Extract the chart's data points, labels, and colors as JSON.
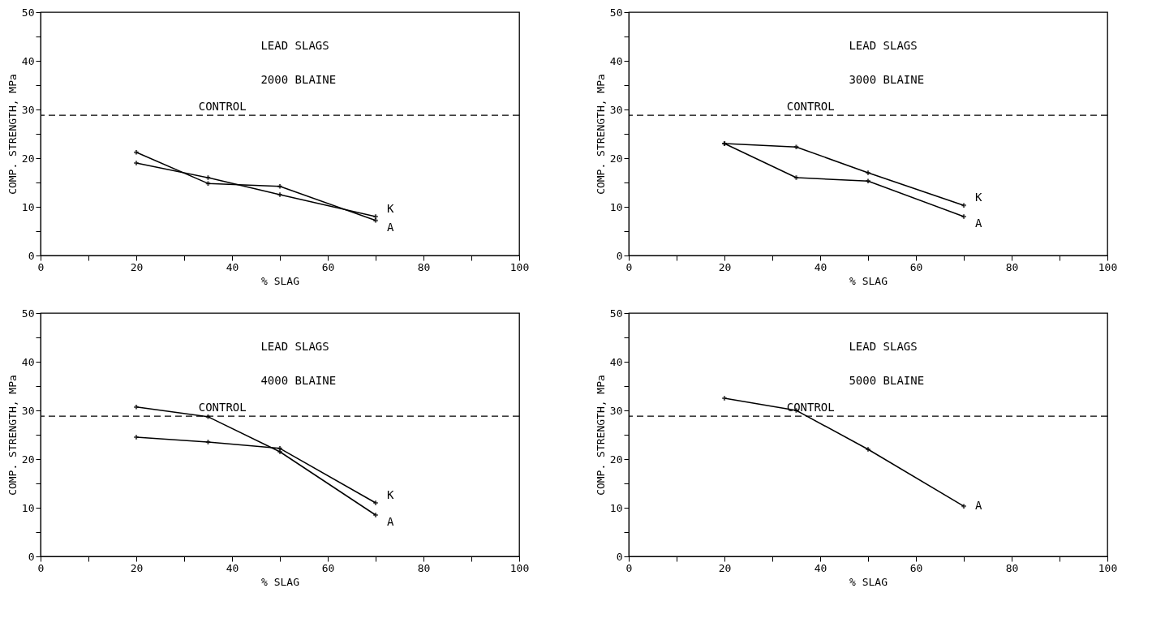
{
  "chart_data": [
    {
      "type": "line",
      "title": "LEAD SLAGS",
      "subtitle": "2000 BLAINE",
      "xlabel": "% SLAG",
      "ylabel": "COMP. STRENGTH, MPa",
      "marker": "cross",
      "line_style": "solid",
      "grid": false,
      "x": [
        20,
        35,
        50,
        70
      ],
      "series": [
        {
          "name": "A",
          "color": "#000000",
          "values": [
            21.2,
            14.8,
            14.2,
            7.2
          ]
        },
        {
          "name": "K",
          "color": "#000000",
          "values": [
            19,
            16,
            12.5,
            8
          ]
        }
      ],
      "ref_lines": [
        {
          "axis": "y",
          "value": 28.8,
          "label": "CONTROL",
          "line_style": "dashed",
          "color": "#000000"
        }
      ],
      "xlim": [
        0,
        100
      ],
      "xticks": [
        0,
        {
          "value": 10,
          "label": null
        },
        20,
        {
          "value": 30,
          "label": null
        },
        40,
        {
          "value": 50,
          "label": null
        },
        60,
        {
          "value": 70,
          "label": null
        },
        80,
        {
          "value": 90,
          "label": null
        },
        100
      ],
      "ylim": [
        0,
        50
      ],
      "yticks": [
        0,
        {
          "value": 5,
          "label": null
        },
        10,
        {
          "value": 15,
          "label": null
        },
        20,
        {
          "value": 25,
          "label": null
        },
        30,
        {
          "value": 35,
          "label": null
        },
        40,
        {
          "value": 45,
          "label": null
        },
        50
      ]
    },
    {
      "type": "line",
      "title": "LEAD SLAGS",
      "subtitle": "3000 BLAINE",
      "xlabel": "% SLAG",
      "ylabel": "COMP. STRENGTH, MPa",
      "marker": "cross",
      "line_style": "solid",
      "grid": false,
      "x": [
        20,
        35,
        50,
        70
      ],
      "series": [
        {
          "name": "K",
          "color": "#000000",
          "values": [
            23,
            22.3,
            17,
            10.3
          ]
        },
        {
          "name": "A",
          "color": "#000000",
          "values": [
            23,
            16,
            15.3,
            8
          ]
        }
      ],
      "ref_lines": [
        {
          "axis": "y",
          "value": 28.8,
          "label": "CONTROL",
          "line_style": "dashed",
          "color": "#000000"
        }
      ],
      "xlim": [
        0,
        100
      ],
      "xticks": [
        0,
        {
          "value": 10,
          "label": null
        },
        20,
        {
          "value": 30,
          "label": null
        },
        40,
        {
          "value": 50,
          "label": null
        },
        60,
        {
          "value": 70,
          "label": null
        },
        80,
        {
          "value": 90,
          "label": null
        },
        100
      ],
      "ylim": [
        0,
        50
      ],
      "yticks": [
        0,
        {
          "value": 5,
          "label": null
        },
        10,
        {
          "value": 15,
          "label": null
        },
        20,
        {
          "value": 25,
          "label": null
        },
        30,
        {
          "value": 35,
          "label": null
        },
        40,
        {
          "value": 45,
          "label": null
        },
        50
      ]
    },
    {
      "type": "line",
      "title": "LEAD SLAGS",
      "subtitle": "4000 BLAINE",
      "xlabel": "% SLAG",
      "ylabel": "COMP. STRENGTH, MPa",
      "marker": "cross",
      "line_style": "solid",
      "grid": false,
      "x": [
        20,
        35,
        50,
        70
      ],
      "series": [
        {
          "name": "A",
          "color": "#000000",
          "values": [
            30.7,
            28.7,
            21.5,
            8.5
          ]
        },
        {
          "name": "K",
          "color": "#000000",
          "values": [
            24.5,
            23.5,
            22.2,
            11
          ]
        }
      ],
      "ref_lines": [
        {
          "axis": "y",
          "value": 28.8,
          "label": "CONTROL",
          "line_style": "dashed",
          "color": "#000000"
        }
      ],
      "xlim": [
        0,
        100
      ],
      "xticks": [
        0,
        {
          "value": 10,
          "label": null
        },
        20,
        {
          "value": 30,
          "label": null
        },
        40,
        {
          "value": 50,
          "label": null
        },
        60,
        {
          "value": 70,
          "label": null
        },
        80,
        {
          "value": 90,
          "label": null
        },
        100
      ],
      "ylim": [
        0,
        50
      ],
      "yticks": [
        0,
        {
          "value": 5,
          "label": null
        },
        10,
        {
          "value": 15,
          "label": null
        },
        20,
        {
          "value": 25,
          "label": null
        },
        30,
        {
          "value": 35,
          "label": null
        },
        40,
        {
          "value": 45,
          "label": null
        },
        50
      ]
    },
    {
      "type": "line",
      "title": "LEAD SLAGS",
      "subtitle": "5000 BLAINE",
      "xlabel": "% SLAG",
      "ylabel": "COMP. STRENGTH, MPa",
      "marker": "cross",
      "line_style": "solid",
      "grid": false,
      "x": [
        20,
        35,
        50,
        70
      ],
      "series": [
        {
          "name": "A",
          "color": "#000000",
          "values": [
            32.5,
            30,
            22,
            10.3
          ]
        }
      ],
      "ref_lines": [
        {
          "axis": "y",
          "value": 28.8,
          "label": "CONTROL",
          "line_style": "dashed",
          "color": "#000000"
        }
      ],
      "xlim": [
        0,
        100
      ],
      "xticks": [
        0,
        {
          "value": 10,
          "label": null
        },
        20,
        {
          "value": 30,
          "label": null
        },
        40,
        {
          "value": 50,
          "label": null
        },
        60,
        {
          "value": 70,
          "label": null
        },
        80,
        {
          "value": 90,
          "label": null
        },
        100
      ],
      "ylim": [
        0,
        50
      ],
      "yticks": [
        0,
        {
          "value": 5,
          "label": null
        },
        10,
        {
          "value": 15,
          "label": null
        },
        20,
        {
          "value": 25,
          "label": null
        },
        30,
        {
          "value": 35,
          "label": null
        },
        40,
        {
          "value": 45,
          "label": null
        },
        50
      ]
    }
  ]
}
